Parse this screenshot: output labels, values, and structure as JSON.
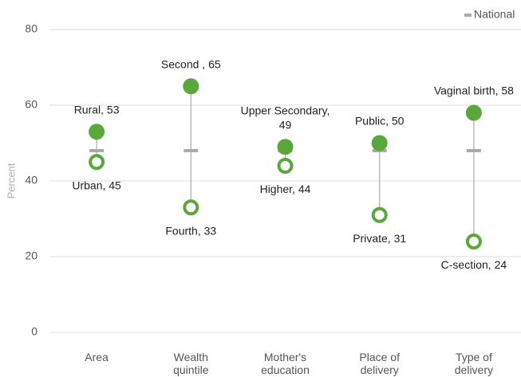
{
  "chart_data": {
    "type": "dumbbell",
    "y_label": "Percent",
    "categories": [
      [
        "Area"
      ],
      [
        "Wealth",
        "quintile"
      ],
      [
        "Mother's",
        "education"
      ],
      [
        "Place of",
        "delivery"
      ],
      [
        "Type of",
        "delivery"
      ]
    ],
    "series": [
      {
        "color": "#5aa83c",
        "fill": "#5aa83c",
        "values": [
          53,
          65,
          49,
          50,
          58
        ],
        "value_labels": [
          [
            "Rural, 53"
          ],
          [
            "Second , 65"
          ],
          [
            "Upper Secondary,",
            "49"
          ],
          [
            "Public, 50"
          ],
          [
            "Vaginal birth, 58"
          ]
        ]
      },
      {
        "color": "#5aa83c",
        "fill": "#ffffff",
        "values": [
          45,
          33,
          44,
          31,
          24
        ],
        "value_labels": [
          [
            "Urban, 45"
          ],
          [
            "Fourth, 33"
          ],
          [
            "Higher, 44"
          ],
          [
            "Private, 31"
          ],
          [
            "C-section, 24"
          ]
        ]
      }
    ],
    "reference": {
      "name": "National",
      "color": "#aaaaaa",
      "values": [
        48,
        48,
        48,
        48,
        48
      ]
    },
    "ylim": [
      0,
      80
    ],
    "yticks": [
      0,
      20,
      40,
      60,
      80
    ],
    "grid": true,
    "legend": "top-right"
  }
}
